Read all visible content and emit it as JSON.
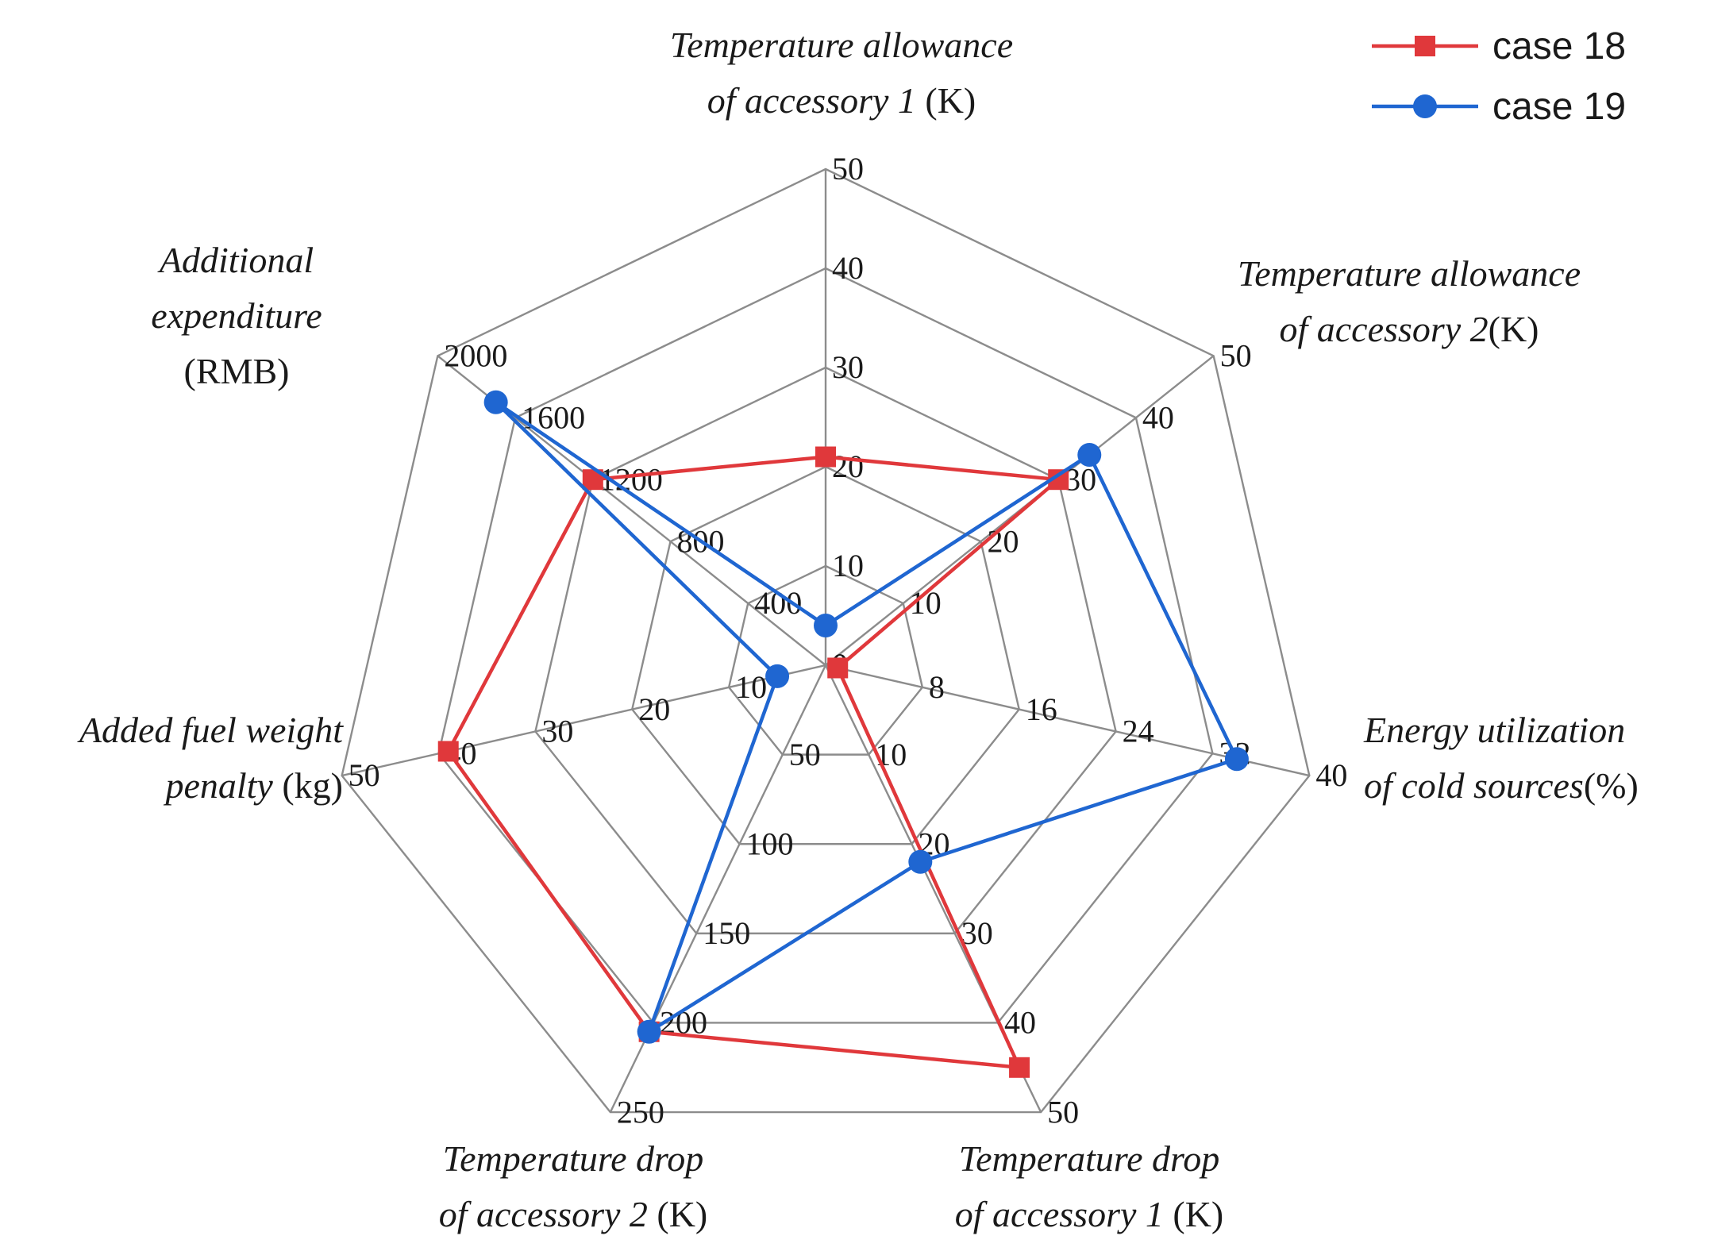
{
  "chart_data": {
    "type": "radar",
    "axes": [
      {
        "title_lines": [
          [
            {
              "text": "Temperature allowance",
              "italic": true
            }
          ],
          [
            {
              "text": "of accessory 1",
              "italic": true
            },
            {
              "text": " (K)",
              "italic": false
            }
          ]
        ],
        "max": 50,
        "ticks": [
          "0",
          "10",
          "20",
          "30",
          "40",
          "50"
        ]
      },
      {
        "title_lines": [
          [
            {
              "text": "Temperature allowance",
              "italic": true
            }
          ],
          [
            {
              "text": "of accessory 2",
              "italic": true
            },
            {
              "text": "(K)",
              "italic": false
            }
          ]
        ],
        "max": 50,
        "ticks": [
          "0",
          "10",
          "20",
          "30",
          "40",
          "50"
        ]
      },
      {
        "title_lines": [
          [
            {
              "text": "Energy utilization",
              "italic": true
            }
          ],
          [
            {
              "text": "of cold sources",
              "italic": true
            },
            {
              "text": "(%)",
              "italic": false
            }
          ]
        ],
        "max": 40,
        "ticks": [
          "0",
          "8",
          "16",
          "24",
          "32",
          "40"
        ]
      },
      {
        "title_lines": [
          [
            {
              "text": "Temperature drop",
              "italic": true
            }
          ],
          [
            {
              "text": "of accessory 1",
              "italic": true
            },
            {
              "text": " (K)",
              "italic": false
            }
          ]
        ],
        "max": 50,
        "ticks": [
          "0",
          "10",
          "20",
          "30",
          "40",
          "50"
        ]
      },
      {
        "title_lines": [
          [
            {
              "text": "Temperature drop",
              "italic": true
            }
          ],
          [
            {
              "text": "of accessory 2",
              "italic": true
            },
            {
              "text": " (K)",
              "italic": false
            }
          ]
        ],
        "max": 250,
        "ticks": [
          "0",
          "50",
          "100",
          "150",
          "200",
          "250"
        ]
      },
      {
        "title_lines": [
          [
            {
              "text": "Added fuel weight",
              "italic": true
            }
          ],
          [
            {
              "text": "penalty",
              "italic": true
            },
            {
              "text": " (kg)",
              "italic": false
            }
          ]
        ],
        "max": 50,
        "ticks": [
          "0",
          "10",
          "20",
          "30",
          "40",
          "50"
        ]
      },
      {
        "title_lines": [
          [
            {
              "text": "Additional",
              "italic": true
            }
          ],
          [
            {
              "text": "expenditure",
              "italic": true
            }
          ],
          [
            {
              "text": "(RMB)",
              "italic": false
            }
          ]
        ],
        "max": 2000,
        "ticks": [
          "0",
          "400",
          "800",
          "1200",
          "1600",
          "2000"
        ]
      }
    ],
    "series": [
      {
        "name": "case 18",
        "color": "#e0383b",
        "marker": "square",
        "values": [
          21,
          30,
          1,
          45,
          205,
          39,
          1200
        ]
      },
      {
        "name": "case 19",
        "color": "#1f66d1",
        "marker": "circle",
        "values": [
          4,
          34,
          34,
          22,
          205,
          5,
          1700
        ]
      }
    ],
    "grid_color": "#8c8c8c",
    "legend_position": "top-right"
  }
}
